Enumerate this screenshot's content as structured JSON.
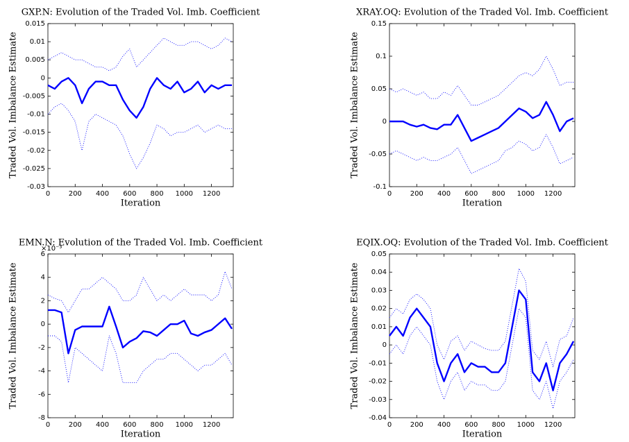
{
  "chart_data": [
    {
      "type": "line",
      "title": "GXP.N: Evolution of the Traded Vol. Imb. Coefficient",
      "ylabel": "Traded Vol. Imbalance Estimate",
      "xlabel": "Iteration",
      "x": [
        0,
        50,
        100,
        150,
        200,
        250,
        300,
        350,
        400,
        450,
        500,
        550,
        600,
        650,
        700,
        750,
        800,
        850,
        900,
        950,
        1000,
        1050,
        1100,
        1150,
        1200,
        1250,
        1300,
        1350
      ],
      "xlim": [
        0,
        1360
      ],
      "xticks": [
        0,
        200,
        400,
        600,
        800,
        1000,
        1200
      ],
      "ylim": [
        -0.03,
        0.015
      ],
      "yticks": [
        -0.03,
        -0.025,
        -0.02,
        -0.015,
        -0.01,
        -0.005,
        0,
        0.005,
        0.01,
        0.015
      ],
      "series": [
        {
          "color": "#0000ff",
          "linestyle": "solid",
          "values": [
            -0.002,
            -0.003,
            -0.001,
            0,
            -0.002,
            -0.007,
            -0.003,
            -0.001,
            -0.001,
            -0.002,
            -0.002,
            -0.006,
            -0.009,
            -0.011,
            -0.008,
            -0.003,
            0,
            -0.002,
            -0.003,
            -0.001,
            -0.004,
            -0.003,
            -0.001,
            -0.004,
            -0.002,
            -0.003,
            -0.002,
            -0.002
          ]
        },
        {
          "color": "#0000ff",
          "linestyle": "dotted",
          "values": [
            0.005,
            0.006,
            0.007,
            0.006,
            0.005,
            0.005,
            0.004,
            0.003,
            0.003,
            0.002,
            0.003,
            0.006,
            0.008,
            0.003,
            0.005,
            0.007,
            0.009,
            0.011,
            0.01,
            0.009,
            0.009,
            0.01,
            0.01,
            0.009,
            0.008,
            0.009,
            0.011,
            0.01
          ]
        },
        {
          "color": "#0000ff",
          "linestyle": "dotted",
          "values": [
            -0.01,
            -0.008,
            -0.007,
            -0.009,
            -0.012,
            -0.02,
            -0.012,
            -0.01,
            -0.011,
            -0.012,
            -0.013,
            -0.016,
            -0.021,
            -0.025,
            -0.022,
            -0.018,
            -0.013,
            -0.014,
            -0.016,
            -0.015,
            -0.015,
            -0.014,
            -0.013,
            -0.015,
            -0.014,
            -0.013,
            -0.014,
            -0.014
          ]
        }
      ]
    },
    {
      "type": "line",
      "title": "XRAY.OQ: Evolution of the Traded Vol. Imb. Coefficient",
      "ylabel": "Traded Vol. Imbalance Estimate",
      "xlabel": "Iteration",
      "x": [
        0,
        50,
        100,
        150,
        200,
        250,
        300,
        350,
        400,
        450,
        500,
        550,
        600,
        650,
        700,
        750,
        800,
        850,
        900,
        950,
        1000,
        1050,
        1100,
        1150,
        1200,
        1250,
        1300,
        1350
      ],
      "xlim": [
        0,
        1360
      ],
      "xticks": [
        0,
        200,
        400,
        600,
        800,
        1000,
        1200
      ],
      "ylim": [
        -0.1,
        0.15
      ],
      "yticks": [
        -0.1,
        -0.05,
        0,
        0.05,
        0.1,
        0.15
      ],
      "series": [
        {
          "color": "#0000ff",
          "linestyle": "solid",
          "values": [
            0,
            0,
            0,
            -0.005,
            -0.008,
            -0.005,
            -0.01,
            -0.012,
            -0.005,
            -0.005,
            0.01,
            -0.01,
            -0.03,
            -0.025,
            -0.02,
            -0.015,
            -0.01,
            0,
            0.01,
            0.02,
            0.015,
            0.005,
            0.01,
            0.03,
            0.01,
            -0.015,
            0,
            0.005
          ]
        },
        {
          "color": "#0000ff",
          "linestyle": "dotted",
          "values": [
            0.05,
            0.045,
            0.05,
            0.045,
            0.04,
            0.045,
            0.035,
            0.035,
            0.045,
            0.04,
            0.055,
            0.04,
            0.025,
            0.025,
            0.03,
            0.035,
            0.04,
            0.05,
            0.06,
            0.07,
            0.075,
            0.07,
            0.08,
            0.1,
            0.08,
            0.055,
            0.06,
            0.06
          ]
        },
        {
          "color": "#0000ff",
          "linestyle": "dotted",
          "values": [
            -0.05,
            -0.045,
            -0.05,
            -0.055,
            -0.06,
            -0.055,
            -0.06,
            -0.06,
            -0.055,
            -0.05,
            -0.04,
            -0.06,
            -0.08,
            -0.075,
            -0.07,
            -0.065,
            -0.06,
            -0.045,
            -0.04,
            -0.03,
            -0.035,
            -0.045,
            -0.04,
            -0.02,
            -0.04,
            -0.065,
            -0.06,
            -0.055
          ]
        }
      ]
    },
    {
      "type": "line",
      "title": "EMN.N: Evolution of the Traded Vol. Imb. Coefficient",
      "ylabel": "Traded Vol. Imbalance Estimate",
      "xlabel": "Iteration",
      "y_exponent_label": "×10⁻³",
      "x": [
        0,
        50,
        100,
        150,
        200,
        250,
        300,
        350,
        400,
        450,
        500,
        550,
        600,
        650,
        700,
        750,
        800,
        850,
        900,
        950,
        1000,
        1050,
        1100,
        1150,
        1200,
        1250,
        1300,
        1350
      ],
      "xlim": [
        0,
        1360
      ],
      "xticks": [
        0,
        200,
        400,
        600,
        800,
        1000,
        1200
      ],
      "ylim": [
        -8,
        6
      ],
      "yticks": [
        -8,
        -6,
        -4,
        -2,
        0,
        2,
        4,
        6
      ],
      "series": [
        {
          "color": "#0000ff",
          "linestyle": "solid",
          "values": [
            1.2,
            1.2,
            1.0,
            -2.5,
            -0.5,
            -0.2,
            -0.2,
            -0.2,
            -0.2,
            1.5,
            -0.2,
            -2.0,
            -1.5,
            -1.2,
            -0.6,
            -0.7,
            -1.0,
            -0.5,
            0,
            0,
            0.3,
            -0.8,
            -1.0,
            -0.7,
            -0.5,
            0,
            0.5,
            -0.4
          ]
        },
        {
          "color": "#0000ff",
          "linestyle": "dotted",
          "values": [
            2.5,
            2.2,
            2.0,
            1.0,
            2.0,
            3.0,
            3.0,
            3.5,
            4.0,
            3.5,
            3.0,
            2.0,
            2.0,
            2.5,
            4.0,
            3.0,
            2.0,
            2.5,
            2.0,
            2.5,
            3.0,
            2.5,
            2.5,
            2.5,
            2.0,
            2.5,
            4.5,
            3.0
          ]
        },
        {
          "color": "#0000ff",
          "linestyle": "dotted",
          "values": [
            -1.0,
            -1.0,
            -1.5,
            -5.0,
            -2.0,
            -2.5,
            -3.0,
            -3.5,
            -4.0,
            -1.0,
            -2.5,
            -5.0,
            -5.0,
            -5.0,
            -4.0,
            -3.5,
            -3.0,
            -3.0,
            -2.5,
            -2.5,
            -3.0,
            -3.5,
            -4.0,
            -3.5,
            -3.5,
            -3.0,
            -2.5,
            -3.5
          ]
        }
      ]
    },
    {
      "type": "line",
      "title": "EQIX.OQ: Evolution of the Traded Vol. Imb. Coefficient",
      "ylabel": "Traded Vol. Imbalance Estimate",
      "xlabel": "Iteration",
      "x": [
        0,
        50,
        100,
        150,
        200,
        250,
        300,
        350,
        400,
        450,
        500,
        550,
        600,
        650,
        700,
        750,
        800,
        850,
        900,
        950,
        1000,
        1050,
        1100,
        1150,
        1200,
        1250,
        1300,
        1350
      ],
      "xlim": [
        0,
        1360
      ],
      "xticks": [
        0,
        200,
        400,
        600,
        800,
        1000,
        1200
      ],
      "ylim": [
        -0.04,
        0.05
      ],
      "yticks": [
        -0.04,
        -0.03,
        -0.02,
        -0.01,
        0,
        0.01,
        0.02,
        0.03,
        0.04,
        0.05
      ],
      "series": [
        {
          "color": "#0000ff",
          "linestyle": "solid",
          "values": [
            0.005,
            0.01,
            0.005,
            0.015,
            0.02,
            0.015,
            0.01,
            -0.01,
            -0.02,
            -0.01,
            -0.005,
            -0.015,
            -0.01,
            -0.012,
            -0.012,
            -0.015,
            -0.015,
            -0.01,
            0.01,
            0.03,
            0.025,
            -0.015,
            -0.02,
            -0.01,
            -0.025,
            -0.01,
            -0.005,
            0.002
          ]
        },
        {
          "color": "#0000ff",
          "linestyle": "dotted",
          "values": [
            0.015,
            0.02,
            0.017,
            0.025,
            0.028,
            0.025,
            0.02,
            0,
            -0.008,
            0.002,
            0.005,
            -0.003,
            0.002,
            0,
            -0.002,
            -0.003,
            -0.003,
            0.002,
            0.022,
            0.042,
            0.035,
            -0.003,
            -0.008,
            0.002,
            -0.012,
            0.003,
            0.005,
            0.015
          ]
        },
        {
          "color": "#0000ff",
          "linestyle": "dotted",
          "values": [
            -0.005,
            0,
            -0.005,
            0.005,
            0.01,
            0.005,
            0,
            -0.02,
            -0.03,
            -0.02,
            -0.015,
            -0.025,
            -0.02,
            -0.022,
            -0.022,
            -0.025,
            -0.025,
            -0.02,
            0,
            0.02,
            0.015,
            -0.025,
            -0.03,
            -0.02,
            -0.035,
            -0.02,
            -0.015,
            -0.008
          ]
        }
      ]
    }
  ]
}
